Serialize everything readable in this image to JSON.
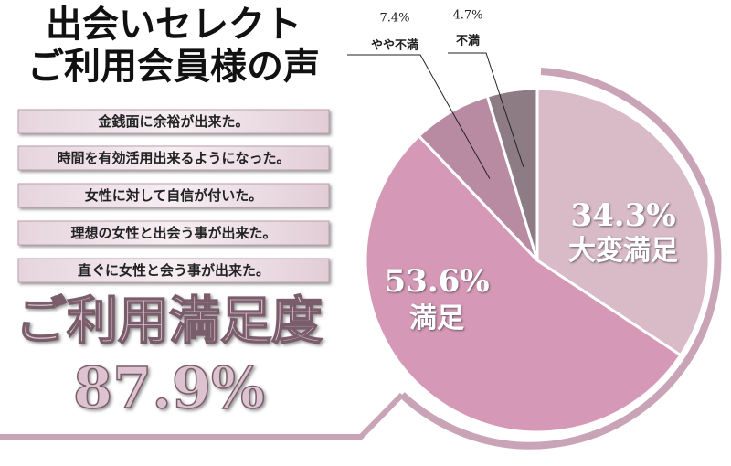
{
  "title": "出会いセレクト",
  "subtitle": "ご利用会員様の声",
  "comments": [
    "金銭面に余裕が出来た。",
    "時間を有効活用出来るようになった。",
    "女性に対して自信が付いた。",
    "理想の女性と出会う事が出来た。",
    "直ぐに女性と会う事が出来た。"
  ],
  "summary": {
    "title": "ご利用満足度",
    "value": {
      "value": 87.9,
      "label": "87.9%"
    }
  },
  "chart_data": {
    "type": "pie",
    "categories": [
      "大変満足",
      "満足",
      "やや不満",
      "不満"
    ],
    "values": [
      34.3,
      53.6,
      7.4,
      4.7
    ],
    "value_labels": [
      "34.3%",
      "53.6%",
      "7.4%",
      "4.7%"
    ],
    "colors": [
      "#d9bac7",
      "#d598b7",
      "#b98ba3",
      "#8e7c85"
    ]
  }
}
